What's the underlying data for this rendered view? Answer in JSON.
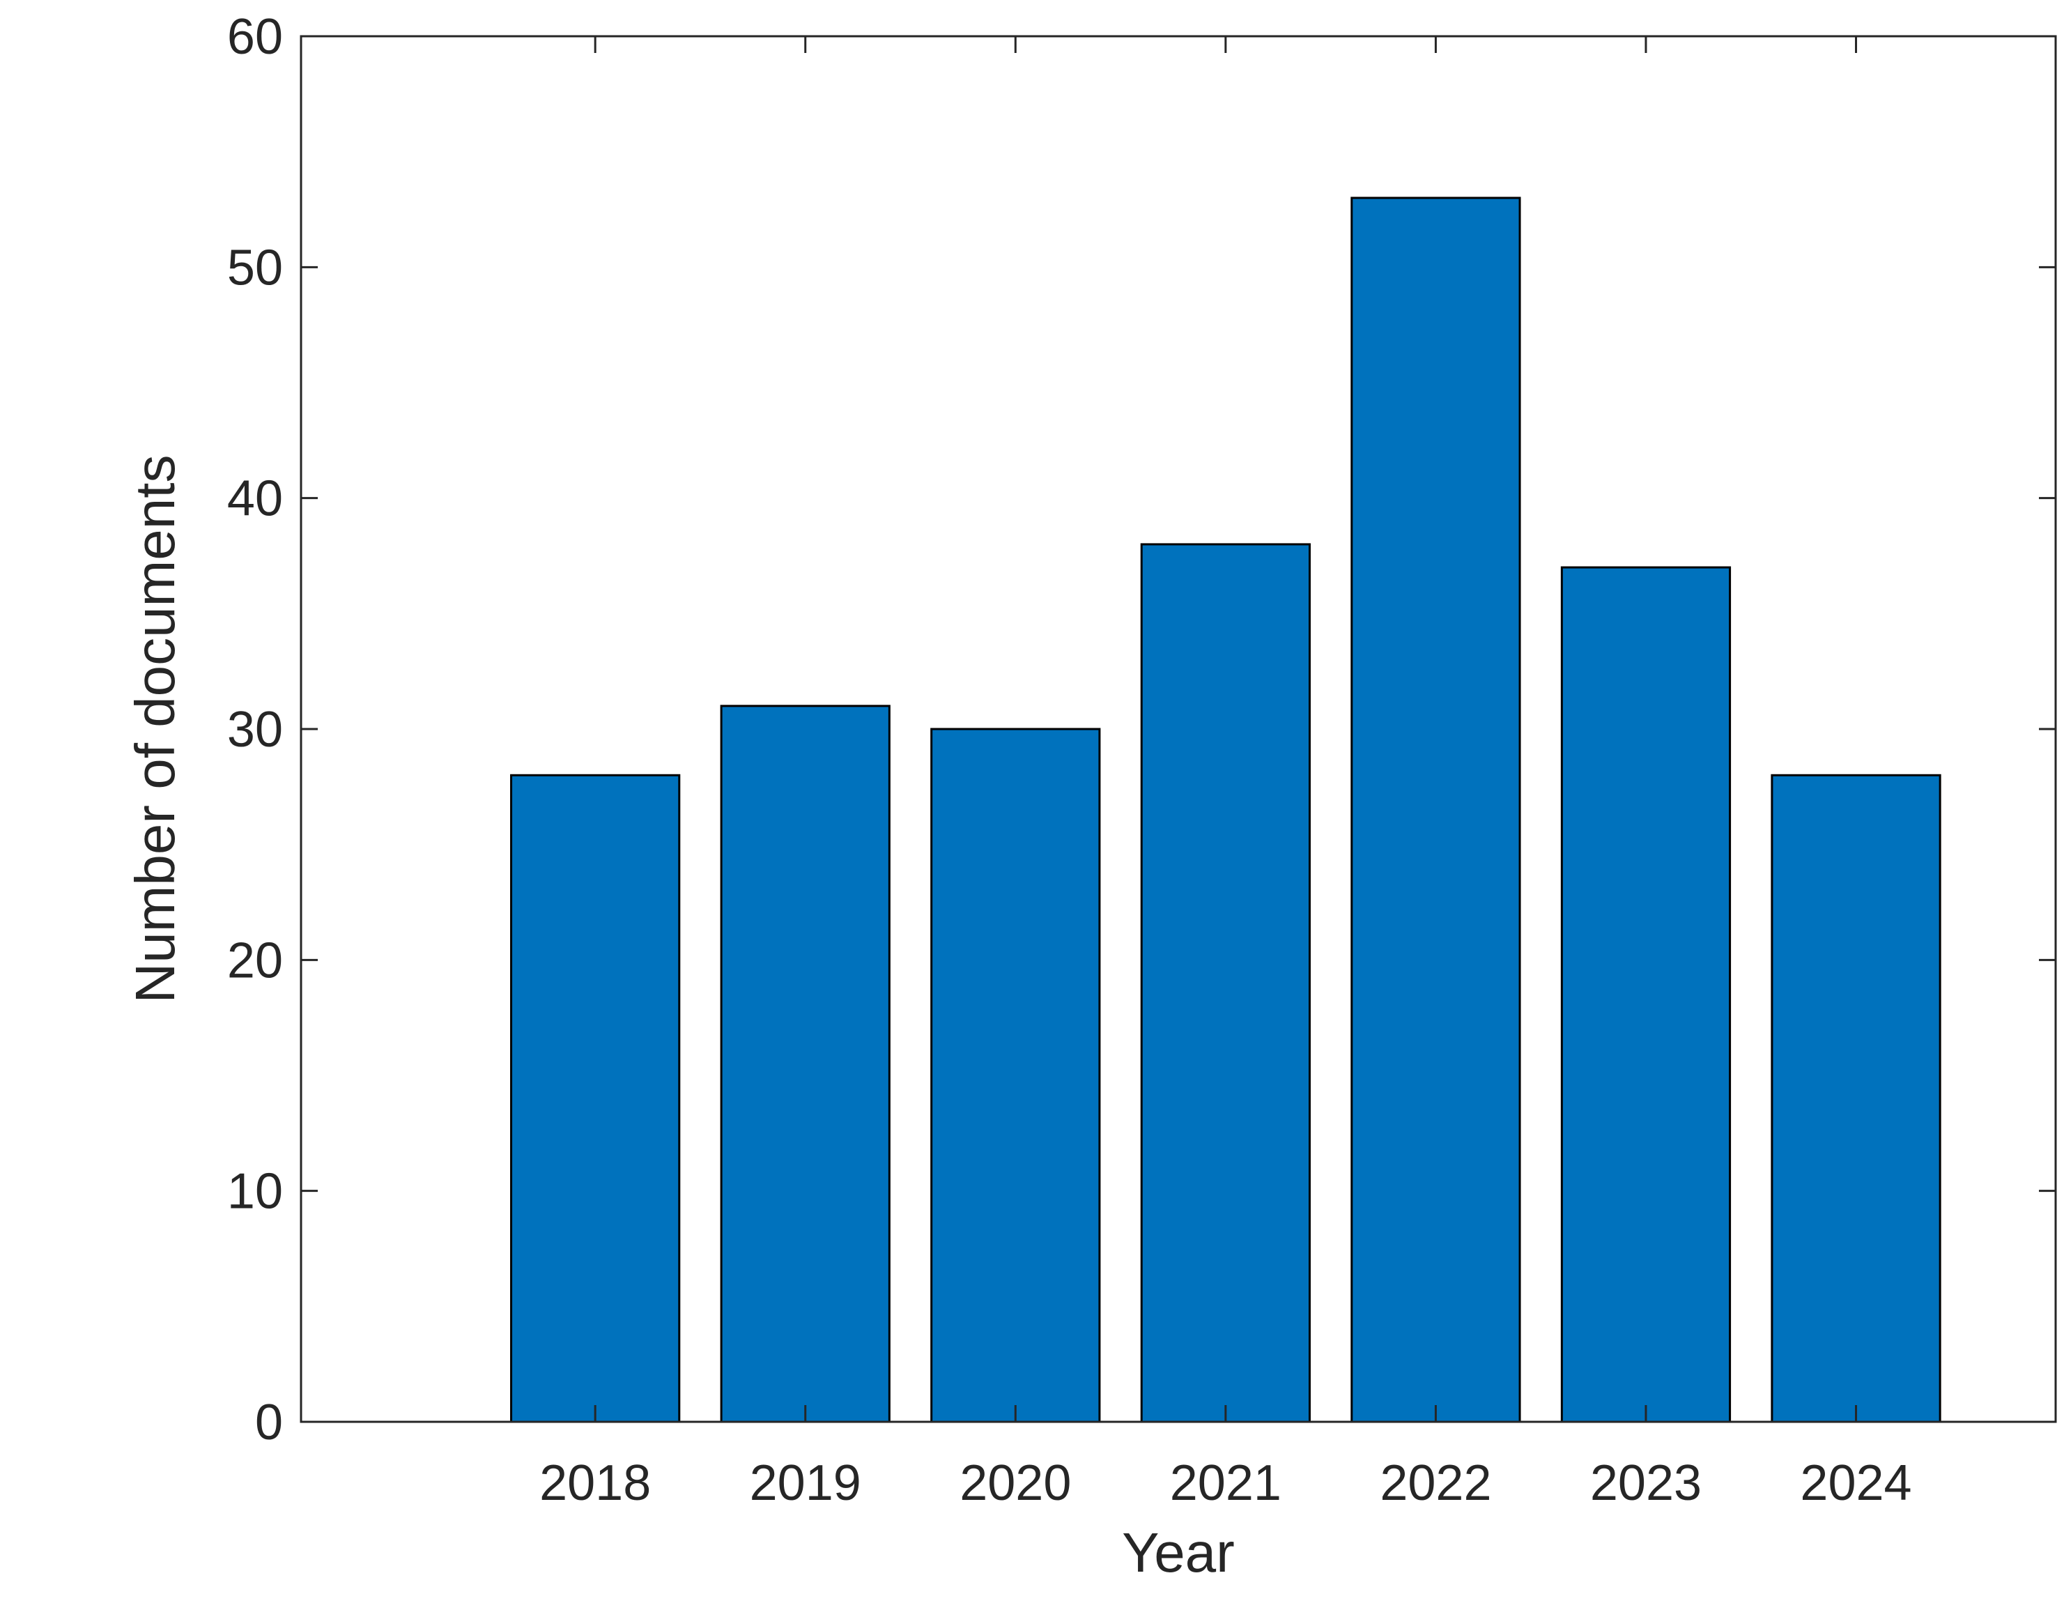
{
  "chart_data": {
    "type": "bar",
    "categories": [
      "2018",
      "2019",
      "2020",
      "2021",
      "2022",
      "2023",
      "2024"
    ],
    "values": [
      28,
      31,
      30,
      38,
      53,
      37,
      28
    ],
    "x": [
      2018,
      2019,
      2020,
      2021,
      2022,
      2023,
      2024
    ],
    "xlim": [
      2016.6,
      2024.95
    ],
    "ylim": [
      0,
      60
    ],
    "yticks": [
      0,
      10,
      20,
      30,
      40,
      50,
      60
    ],
    "xlabel": "Year",
    "ylabel": "Number of documents",
    "bar_color": "#0072bd",
    "edge_color": "#000000",
    "axis_color": "#262626",
    "grid": false,
    "legend": "none",
    "box": true
  }
}
